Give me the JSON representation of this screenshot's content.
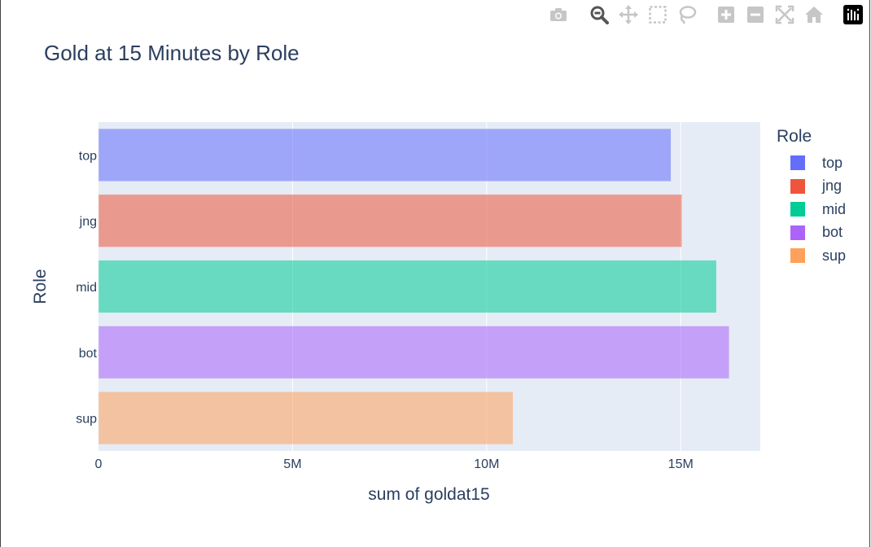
{
  "page": {
    "title": "Gold at 15 Minutes by Role"
  },
  "modebar": {
    "buttons": [
      {
        "name": "camera-icon",
        "label": "Download plot as a png"
      },
      {
        "name": "zoom-icon",
        "label": "Zoom"
      },
      {
        "name": "pan-icon",
        "label": "Pan"
      },
      {
        "name": "box-select-icon",
        "label": "Box Select"
      },
      {
        "name": "lasso-select-icon",
        "label": "Lasso Select"
      },
      {
        "name": "zoom-in-icon",
        "label": "Zoom in"
      },
      {
        "name": "zoom-out-icon",
        "label": "Zoom out"
      },
      {
        "name": "autoscale-icon",
        "label": "Autoscale"
      },
      {
        "name": "reset-axes-icon",
        "label": "Reset axes"
      },
      {
        "name": "plotly-logo-icon",
        "label": "Produced with Plotly"
      }
    ]
  },
  "chart_data": {
    "type": "bar",
    "orientation": "horizontal",
    "title": "Gold at 15 Minutes by Role",
    "xlabel": "sum of goldat15",
    "ylabel": "Role",
    "categories": [
      "top",
      "jng",
      "mid",
      "bot",
      "sup"
    ],
    "values": [
      14750000,
      15030000,
      15920000,
      16250000,
      10680000
    ],
    "xlim": [
      0,
      17050000
    ],
    "xticks": [
      {
        "value": 0,
        "label": "0"
      },
      {
        "value": 5000000,
        "label": "5M"
      },
      {
        "value": 10000000,
        "label": "10M"
      },
      {
        "value": 15000000,
        "label": "15M"
      }
    ],
    "grid": true,
    "legend": {
      "title": "Role",
      "placement": "right",
      "entries": [
        {
          "name": "top",
          "color": "#636efa"
        },
        {
          "name": "jng",
          "color": "#ef553b"
        },
        {
          "name": "mid",
          "color": "#00cc96"
        },
        {
          "name": "bot",
          "color": "#ab63fa"
        },
        {
          "name": "sup",
          "color": "#ffa15a"
        }
      ]
    },
    "bar_opacity": 0.55,
    "plot_bgcolor": "#e5ecf6"
  }
}
